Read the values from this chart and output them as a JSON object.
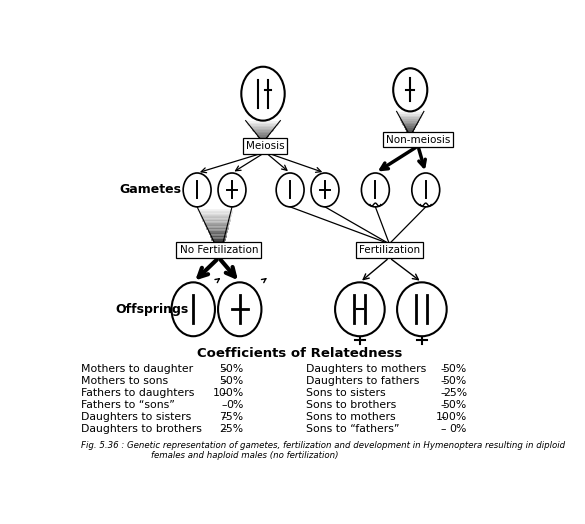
{
  "title": "Coefficients of Relatedness",
  "fig_caption_line1": "Fig. 5.36 : Genetic representation of gametes, fertilization and development in Hymenoptera resulting in diploid",
  "fig_caption_line2": "females and haploid males (no fertilization)",
  "gametes_label": "Gametes",
  "offsprings_label": "Offsprings",
  "meiosis_label": "Meiosis",
  "non_meiosis_label": "Non-meiosis",
  "no_fert_label": "No Fertilization",
  "fert_label": "Fertilization",
  "table_left": [
    [
      "Mothers to daughter",
      "–",
      "50%"
    ],
    [
      "Mothers to sons",
      "–",
      "50%"
    ],
    [
      "Fathers to daughters",
      "–",
      "100%"
    ],
    [
      "Fathers to “sons”",
      "–",
      "0%"
    ],
    [
      "Daughters to sisters",
      "–",
      "75%"
    ],
    [
      "Daughters to brothers",
      "–",
      "25%"
    ]
  ],
  "table_right": [
    [
      "Daughters to mothers",
      "–",
      "50%"
    ],
    [
      "Daughters to fathers",
      "–",
      "50%"
    ],
    [
      "Sons to sisters",
      "–",
      "25%"
    ],
    [
      "Sons to brothers",
      "–",
      "50%"
    ],
    [
      "Sons to mothers",
      "–",
      "100%"
    ],
    [
      "Sons to “fathers”",
      "–",
      "0%"
    ]
  ]
}
